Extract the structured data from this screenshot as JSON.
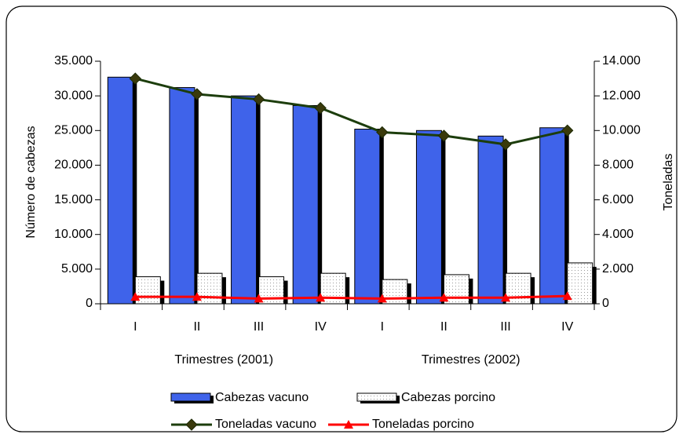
{
  "chart_data": {
    "type": "combo",
    "categories": [
      "I",
      "II",
      "III",
      "IV",
      "I",
      "II",
      "III",
      "IV"
    ],
    "category_groups": [
      "Trimestres (2001)",
      "Trimestres (2002)"
    ],
    "ylabel": "Número de cabezas",
    "y2label": "Toneladas",
    "ylim": [
      0,
      35000
    ],
    "yticks": [
      0,
      {
        "value": 5000,
        "label": "5.000"
      },
      {
        "value": 10000,
        "label": "10.000"
      },
      {
        "value": 15000,
        "label": "15.000"
      },
      {
        "value": 20000,
        "label": "20.000"
      },
      {
        "value": 25000,
        "label": "25.000"
      },
      {
        "value": 30000,
        "label": "30.000"
      },
      {
        "value": 35000,
        "label": "35.000"
      }
    ],
    "y2lim": [
      0,
      14000
    ],
    "y2ticks": [
      0,
      {
        "value": 2000,
        "label": "2.000"
      },
      {
        "value": 4000,
        "label": "4.000"
      },
      {
        "value": 6000,
        "label": "6.000"
      },
      {
        "value": 8000,
        "label": "8.000"
      },
      {
        "value": 10000,
        "label": "10.000"
      },
      {
        "value": 12000,
        "label": "12.000"
      },
      {
        "value": 14000,
        "label": "14.000"
      }
    ],
    "series": [
      {
        "name": "Cabezas vacuno",
        "type": "bar",
        "color": "#3f63ea",
        "values": [
          32700,
          31200,
          30000,
          28600,
          25200,
          25000,
          24200,
          25400
        ]
      },
      {
        "name": "Cabezas porcino",
        "type": "bar",
        "color": "#ffffff",
        "values": [
          3900,
          4400,
          3900,
          4400,
          3500,
          4200,
          4400,
          5900
        ]
      },
      {
        "name": "Toneladas vacuno",
        "type": "line",
        "marker": "diamond",
        "color": "#1c3d0c",
        "axis": "y2",
        "values": [
          13000,
          12100,
          11800,
          11300,
          9900,
          9700,
          9200,
          10000
        ]
      },
      {
        "name": "Toneladas porcino",
        "type": "line",
        "marker": "triangle",
        "color": "#ff0000",
        "axis": "y2",
        "values": [
          400,
          400,
          300,
          350,
          300,
          350,
          350,
          450
        ]
      }
    ]
  }
}
